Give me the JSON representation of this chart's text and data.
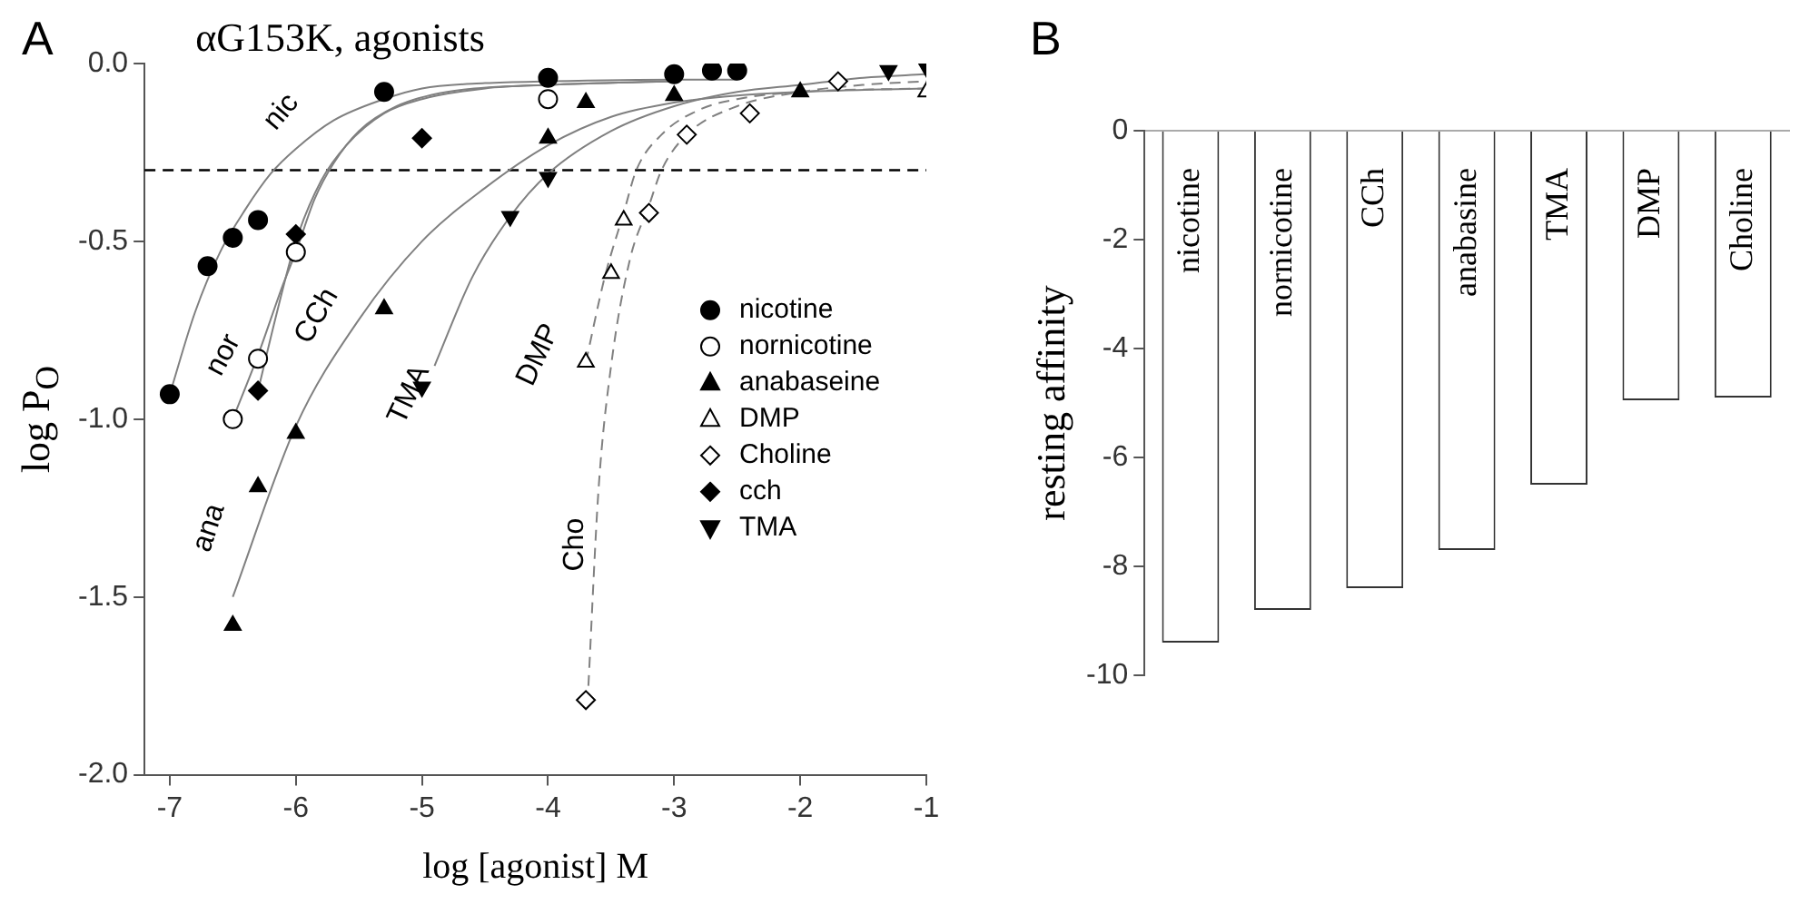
{
  "chart_data": [
    {
      "type": "scatter",
      "title": "αG153K, agonists",
      "xlabel": "log [agonist] M",
      "ylabel": "log P$_{O}$",
      "xlim": [
        -7.2,
        -1.0
      ],
      "xticks": [
        -7,
        -6,
        -5,
        -4,
        -3,
        -2,
        -1
      ],
      "ylim": [
        -2.0,
        0.0
      ],
      "yticks": [
        {
          "value": 0,
          "label": "0.0"
        },
        {
          "value": -0.5,
          "label": "-0.5"
        },
        {
          "value": -1,
          "label": "-1.0"
        },
        {
          "value": -1.5,
          "label": "-1.5"
        },
        {
          "value": -2,
          "label": "-2.0"
        }
      ],
      "legend": "right",
      "annotations": [
        "A"
      ],
      "ref_lines": [
        {
          "axis": "y",
          "value": -0.3,
          "line_style": "dashed",
          "color": "#000000"
        }
      ],
      "series": [
        {
          "type": "line",
          "name": "nic",
          "marker": "none",
          "color": "#808080",
          "x": [
            -7.0,
            -6.8,
            -6.6,
            -6.4,
            -6.2,
            -6.0,
            -5.7,
            -5.3,
            -5.0,
            -4.5,
            -4.0,
            -3.0,
            -2.5
          ],
          "values": [
            -0.93,
            -0.7,
            -0.53,
            -0.41,
            -0.31,
            -0.24,
            -0.16,
            -0.1,
            -0.07,
            -0.055,
            -0.05,
            -0.045,
            -0.045
          ]
        },
        {
          "type": "line",
          "name": "nor",
          "marker": "none",
          "color": "#808080",
          "x": [
            -6.5,
            -6.3,
            -6.1,
            -6.0,
            -5.85,
            -5.7,
            -5.5,
            -5.2,
            -4.8,
            -4.0,
            -3.0
          ],
          "values": [
            -1.0,
            -0.82,
            -0.62,
            -0.53,
            -0.38,
            -0.28,
            -0.19,
            -0.12,
            -0.08,
            -0.06,
            -0.05
          ]
        },
        {
          "type": "line",
          "name": "CCh",
          "marker": "none",
          "color": "#808080",
          "x": [
            -6.3,
            -6.15,
            -6.0,
            -5.8,
            -5.6,
            -5.3,
            -5.0,
            -4.5,
            -4.0,
            -3.0
          ],
          "values": [
            -0.92,
            -0.7,
            -0.5,
            -0.33,
            -0.23,
            -0.14,
            -0.1,
            -0.07,
            -0.06,
            -0.05
          ]
        },
        {
          "type": "line",
          "name": "ana",
          "marker": "none",
          "color": "#808080",
          "x": [
            -6.5,
            -6.0,
            -5.5,
            -5.0,
            -4.5,
            -4.0,
            -3.5,
            -3.0,
            -2.5,
            -2.0,
            -1.0
          ],
          "values": [
            -1.5,
            -1.02,
            -0.72,
            -0.5,
            -0.35,
            -0.23,
            -0.15,
            -0.11,
            -0.09,
            -0.08,
            -0.07
          ]
        },
        {
          "type": "line",
          "name": "TMA",
          "marker": "none",
          "color": "#808080",
          "x": [
            -4.9,
            -4.6,
            -4.3,
            -4.0,
            -3.5,
            -3.0,
            -2.5,
            -2.0,
            -1.5,
            -1.0
          ],
          "values": [
            -0.85,
            -0.6,
            -0.43,
            -0.31,
            -0.19,
            -0.12,
            -0.08,
            -0.06,
            -0.04,
            -0.03
          ]
        },
        {
          "type": "line",
          "name": "DMP",
          "marker": "none",
          "color": "#808080",
          "line_style": "dashed",
          "x": [
            -3.7,
            -3.55,
            -3.4,
            -3.3,
            -3.1,
            -2.8,
            -2.5,
            -2.0,
            -1.0
          ],
          "values": [
            -0.84,
            -0.6,
            -0.42,
            -0.3,
            -0.2,
            -0.13,
            -0.1,
            -0.08,
            -0.07
          ]
        },
        {
          "type": "line",
          "name": "Cho",
          "marker": "none",
          "color": "#808080",
          "line_style": "dashed",
          "x": [
            -3.68,
            -3.6,
            -3.5,
            -3.35,
            -3.2,
            -3.1,
            -2.9,
            -2.5,
            -2.0,
            -1.5,
            -1.0
          ],
          "values": [
            -1.75,
            -1.2,
            -0.85,
            -0.55,
            -0.4,
            -0.3,
            -0.2,
            -0.12,
            -0.08,
            -0.06,
            -0.05
          ]
        },
        {
          "name": "nicotine",
          "marker": "circle",
          "color": "#000000",
          "x": [
            -7.0,
            -6.7,
            -6.5,
            -6.3,
            -5.3,
            -4.0,
            -3.0,
            -2.7,
            -2.5
          ],
          "values": [
            -0.93,
            -0.57,
            -0.49,
            -0.44,
            -0.08,
            -0.04,
            -0.03,
            -0.02,
            -0.02
          ]
        },
        {
          "name": "nornicotine",
          "marker": "circle",
          "color": "#ffffff",
          "x": [
            -6.5,
            -6.3,
            -6.0,
            -4.0
          ],
          "values": [
            -1.0,
            -0.83,
            -0.53,
            -0.1
          ]
        },
        {
          "name": "anabaseine",
          "marker": "triangle",
          "color": "#000000",
          "x": [
            -6.5,
            -6.3,
            -6.0,
            -5.3,
            -4.0,
            -3.7,
            -3.0,
            -2.0
          ],
          "values": [
            -1.58,
            -1.19,
            -1.04,
            -0.69,
            -0.21,
            -0.11,
            -0.09,
            -0.08
          ]
        },
        {
          "name": "DMP",
          "marker": "triangle",
          "color": "#ffffff",
          "x": [
            -3.7,
            -3.5,
            -3.4,
            -1.0
          ],
          "values": [
            -0.84,
            -0.59,
            -0.44,
            -0.08
          ]
        },
        {
          "name": "Choline",
          "marker": "diamond",
          "color": "#ffffff",
          "x": [
            -3.7,
            -3.2,
            -2.9,
            -2.4,
            -1.7
          ],
          "values": [
            -1.79,
            -0.42,
            -0.2,
            -0.14,
            -0.05
          ]
        },
        {
          "name": "cch",
          "marker": "diamond",
          "color": "#000000",
          "x": [
            -6.3,
            -6.0,
            -5.0
          ],
          "values": [
            -0.92,
            -0.48,
            -0.21
          ]
        },
        {
          "name": "TMA",
          "marker": "triangle-down",
          "color": "#000000",
          "x": [
            -5.0,
            -4.3,
            -4.0,
            -1.3,
            -1.0
          ],
          "values": [
            -0.91,
            -0.43,
            -0.32,
            -0.02,
            -0.01
          ]
        }
      ]
    },
    {
      "type": "bar",
      "ylabel": "resting affinity",
      "annotations": [
        "B"
      ],
      "categories": [
        "nicotine",
        "nornicotine",
        "CCh",
        "anabasine",
        "TMA",
        "DMP",
        "Choline"
      ],
      "values": [
        -9.4,
        -8.8,
        -8.4,
        -7.7,
        -6.5,
        -4.95,
        -4.9
      ],
      "color": "#ffffff",
      "ylim": [
        -10,
        0
      ],
      "yticks": [
        0,
        -2,
        -4,
        -6,
        -8,
        -10
      ]
    }
  ]
}
